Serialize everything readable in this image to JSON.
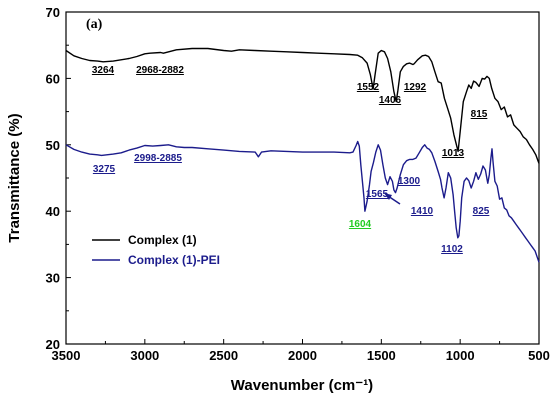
{
  "chart_data": {
    "type": "line",
    "panel_label": "(a)",
    "xlabel": "Wavenumber (cm⁻¹)",
    "ylabel": "Transmittance (%)",
    "xlim": [
      3500,
      500
    ],
    "ylim": [
      20,
      70
    ],
    "x_ticks": [
      3500,
      3000,
      2500,
      2000,
      1500,
      1000,
      500
    ],
    "y_ticks": [
      20,
      30,
      40,
      50,
      60,
      70
    ],
    "grid": false,
    "legend_position": "lower-left",
    "series": [
      {
        "name": "Complex (1)",
        "color": "#000000",
        "points": [
          [
            3500,
            64.2
          ],
          [
            3450,
            63.4
          ],
          [
            3400,
            63.0
          ],
          [
            3350,
            62.7
          ],
          [
            3300,
            62.6
          ],
          [
            3264,
            62.5
          ],
          [
            3200,
            62.6
          ],
          [
            3100,
            63.0
          ],
          [
            3050,
            63.3
          ],
          [
            3000,
            63.7
          ],
          [
            2968,
            63.8
          ],
          [
            2900,
            63.9
          ],
          [
            2882,
            63.8
          ],
          [
            2800,
            64.3
          ],
          [
            2700,
            64.5
          ],
          [
            2600,
            64.5
          ],
          [
            2500,
            64.2
          ],
          [
            2450,
            64.1
          ],
          [
            2400,
            64.3
          ],
          [
            2300,
            64.2
          ],
          [
            2200,
            64.1
          ],
          [
            2100,
            64.0
          ],
          [
            2000,
            63.9
          ],
          [
            1900,
            63.8
          ],
          [
            1800,
            63.7
          ],
          [
            1700,
            63.6
          ],
          [
            1650,
            63.5
          ],
          [
            1620,
            63.1
          ],
          [
            1590,
            62.3
          ],
          [
            1570,
            60.6
          ],
          [
            1552,
            58.4
          ],
          [
            1540,
            60.5
          ],
          [
            1520,
            63.8
          ],
          [
            1500,
            64.2
          ],
          [
            1480,
            64.0
          ],
          [
            1460,
            63.0
          ],
          [
            1440,
            61.0
          ],
          [
            1420,
            58.0
          ],
          [
            1406,
            56.5
          ],
          [
            1395,
            58.2
          ],
          [
            1380,
            61.0
          ],
          [
            1360,
            61.8
          ],
          [
            1340,
            62.2
          ],
          [
            1320,
            62.3
          ],
          [
            1300,
            62.1
          ],
          [
            1292,
            62.2
          ],
          [
            1270,
            62.8
          ],
          [
            1240,
            63.4
          ],
          [
            1220,
            63.5
          ],
          [
            1200,
            63.3
          ],
          [
            1180,
            62.5
          ],
          [
            1160,
            61.0
          ],
          [
            1140,
            59.5
          ],
          [
            1120,
            59.3
          ],
          [
            1100,
            57.0
          ],
          [
            1080,
            55.5
          ],
          [
            1060,
            54.0
          ],
          [
            1040,
            51.5
          ],
          [
            1013,
            49.0
          ],
          [
            1000,
            52.0
          ],
          [
            980,
            56.5
          ],
          [
            960,
            58.0
          ],
          [
            945,
            59.0
          ],
          [
            930,
            58.5
          ],
          [
            915,
            59.6
          ],
          [
            900,
            59.4
          ],
          [
            880,
            58.8
          ],
          [
            860,
            60.0
          ],
          [
            845,
            59.9
          ],
          [
            830,
            60.3
          ],
          [
            815,
            60.0
          ],
          [
            800,
            58.5
          ],
          [
            780,
            57.0
          ],
          [
            760,
            56.5
          ],
          [
            740,
            55.3
          ],
          [
            720,
            55.7
          ],
          [
            700,
            54.2
          ],
          [
            680,
            54.5
          ],
          [
            660,
            53.0
          ],
          [
            640,
            52.5
          ],
          [
            620,
            52.0
          ],
          [
            600,
            51.2
          ],
          [
            580,
            50.8
          ],
          [
            560,
            50.0
          ],
          [
            540,
            49.3
          ],
          [
            520,
            48.5
          ],
          [
            505,
            47.5
          ],
          [
            500,
            47.2
          ]
        ]
      },
      {
        "name": "Complex (1)-PEI",
        "color": "#1c1c8c",
        "points": [
          [
            3500,
            50.0
          ],
          [
            3450,
            49.3
          ],
          [
            3400,
            48.9
          ],
          [
            3350,
            48.6
          ],
          [
            3300,
            48.5
          ],
          [
            3275,
            48.4
          ],
          [
            3200,
            48.6
          ],
          [
            3150,
            48.8
          ],
          [
            3100,
            49.2
          ],
          [
            3050,
            49.5
          ],
          [
            3000,
            49.9
          ],
          [
            2950,
            49.8
          ],
          [
            2900,
            49.9
          ],
          [
            2850,
            50.0
          ],
          [
            2800,
            49.7
          ],
          [
            2750,
            49.6
          ],
          [
            2700,
            49.6
          ],
          [
            2600,
            49.4
          ],
          [
            2500,
            49.2
          ],
          [
            2400,
            49.0
          ],
          [
            2300,
            48.9
          ],
          [
            2280,
            48.2
          ],
          [
            2260,
            48.9
          ],
          [
            2200,
            49.1
          ],
          [
            2100,
            49.0
          ],
          [
            2000,
            48.9
          ],
          [
            1900,
            48.9
          ],
          [
            1800,
            48.9
          ],
          [
            1700,
            48.8
          ],
          [
            1680,
            48.9
          ],
          [
            1660,
            49.9
          ],
          [
            1650,
            50.5
          ],
          [
            1640,
            49.8
          ],
          [
            1630,
            47.0
          ],
          [
            1620,
            44.5
          ],
          [
            1610,
            42.0
          ],
          [
            1604,
            40.0
          ],
          [
            1590,
            41.5
          ],
          [
            1575,
            44.0
          ],
          [
            1565,
            46.0
          ],
          [
            1550,
            47.3
          ],
          [
            1535,
            48.9
          ],
          [
            1520,
            50.0
          ],
          [
            1505,
            49.2
          ],
          [
            1490,
            47.0
          ],
          [
            1475,
            45.0
          ],
          [
            1460,
            44.0
          ],
          [
            1445,
            45.2
          ],
          [
            1430,
            44.5
          ],
          [
            1420,
            43.2
          ],
          [
            1410,
            42.8
          ],
          [
            1400,
            43.5
          ],
          [
            1380,
            45.5
          ],
          [
            1360,
            47.0
          ],
          [
            1340,
            47.6
          ],
          [
            1320,
            47.8
          ],
          [
            1300,
            47.8
          ],
          [
            1280,
            48.0
          ],
          [
            1260,
            48.8
          ],
          [
            1240,
            49.6
          ],
          [
            1225,
            50.0
          ],
          [
            1210,
            49.5
          ],
          [
            1195,
            49.3
          ],
          [
            1180,
            48.8
          ],
          [
            1160,
            47.5
          ],
          [
            1140,
            46.0
          ],
          [
            1125,
            44.8
          ],
          [
            1115,
            43.5
          ],
          [
            1102,
            42.0
          ],
          [
            1090,
            43.5
          ],
          [
            1075,
            45.8
          ],
          [
            1060,
            45.0
          ],
          [
            1045,
            42.5
          ],
          [
            1035,
            40.0
          ],
          [
            1025,
            37.5
          ],
          [
            1015,
            36.0
          ],
          [
            1008,
            36.3
          ],
          [
            1000,
            38.5
          ],
          [
            990,
            42.0
          ],
          [
            975,
            44.5
          ],
          [
            960,
            45.0
          ],
          [
            945,
            44.6
          ],
          [
            930,
            43.5
          ],
          [
            915,
            44.5
          ],
          [
            900,
            45.8
          ],
          [
            885,
            44.8
          ],
          [
            870,
            45.6
          ],
          [
            855,
            46.8
          ],
          [
            840,
            46.2
          ],
          [
            828,
            44.6
          ],
          [
            825,
            44.2
          ],
          [
            815,
            45.5
          ],
          [
            805,
            48.0
          ],
          [
            798,
            49.4
          ],
          [
            792,
            47.5
          ],
          [
            780,
            44.5
          ],
          [
            765,
            43.8
          ],
          [
            750,
            41.8
          ],
          [
            735,
            42.0
          ],
          [
            720,
            40.5
          ],
          [
            705,
            40.2
          ],
          [
            690,
            39.3
          ],
          [
            675,
            39.0
          ],
          [
            660,
            38.5
          ],
          [
            645,
            38.0
          ],
          [
            630,
            37.5
          ],
          [
            615,
            37.0
          ],
          [
            600,
            36.5
          ],
          [
            585,
            36.0
          ],
          [
            570,
            35.5
          ],
          [
            555,
            35.0
          ],
          [
            540,
            34.5
          ],
          [
            525,
            34.0
          ],
          [
            510,
            33.0
          ],
          [
            500,
            32.3
          ]
        ]
      }
    ],
    "annotations": [
      {
        "text": "3264",
        "color": "#000000"
      },
      {
        "text": "2968-2882",
        "color": "#000000"
      },
      {
        "text": "1552",
        "color": "#000000"
      },
      {
        "text": "1406",
        "color": "#000000"
      },
      {
        "text": "1292",
        "color": "#000000"
      },
      {
        "text": "1013",
        "color": "#000000"
      },
      {
        "text": "815",
        "color": "#000000"
      },
      {
        "text": "3275",
        "color": "#1c1c8c"
      },
      {
        "text": "2998-2885",
        "color": "#1c1c8c"
      },
      {
        "text": "1604",
        "color": "#22cc22"
      },
      {
        "text": "1565",
        "color": "#1c1c8c"
      },
      {
        "text": "1300",
        "color": "#1c1c8c"
      },
      {
        "text": "1410",
        "color": "#1c1c8c"
      },
      {
        "text": "1102",
        "color": "#1c1c8c"
      },
      {
        "text": "825",
        "color": "#1c1c8c"
      }
    ]
  }
}
